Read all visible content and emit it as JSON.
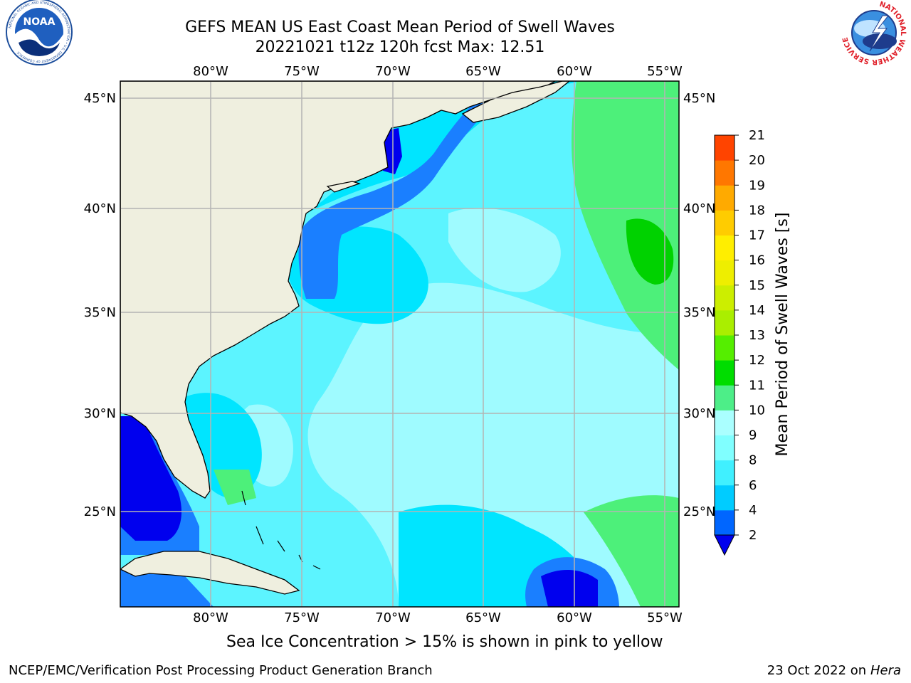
{
  "header": {
    "title_line1": "GEFS MEAN US East Coast Mean Period of Swell Waves",
    "title_line2": "20221021 t12z 120h fcst   Max: 12.51"
  },
  "logos": {
    "left": "NOAA",
    "left_ring": "NATIONAL OCEANIC AND ATMOSPHERIC ADMINISTRATION • U.S. DEPARTMENT OF COMMERCE",
    "right_ring": "NATIONAL WEATHER SERVICE"
  },
  "map": {
    "lon_labels": [
      "80°W",
      "75°W",
      "70°W",
      "65°W",
      "60°W",
      "55°W"
    ],
    "lat_labels": [
      "45°N",
      "40°N",
      "35°N",
      "30°N",
      "25°N"
    ],
    "colors": {
      "land": "#efefdf",
      "water_low": "#0000ee",
      "water_2_4": "#1a7fff",
      "water_4_6": "#00e5ff",
      "water_6_8": "#5cf4ff",
      "water_8_9": "#9ffbff",
      "water_9_10": "#4df07a",
      "water_10_11": "#00d200",
      "grid": "#b4b4b4"
    }
  },
  "colorbar": {
    "label": "Mean Period of Swell Waves [s]",
    "ticks": [
      "2",
      "4",
      "6",
      "8",
      "9",
      "10",
      "11",
      "12",
      "13",
      "14",
      "15",
      "16",
      "17",
      "18",
      "19",
      "20",
      "21"
    ],
    "colors": [
      "#0066ff",
      "#00ccff",
      "#40f0ff",
      "#80ffff",
      "#aaffff",
      "#4dee88",
      "#00dd00",
      "#55ee00",
      "#aaee00",
      "#ccee00",
      "#eeee00",
      "#ffee00",
      "#ffcc00",
      "#ffaa00",
      "#ff7700",
      "#ff4400",
      "#ff1100",
      "#ee0000"
    ],
    "extend_color": "#0000ee"
  },
  "footer": {
    "note": "Sea Ice Concentration > 15% is shown in pink to yellow",
    "credit": "NCEP/EMC/Verification Post Processing Product Generation Branch",
    "date": "23 Oct 2022 on",
    "host": "Hera"
  }
}
